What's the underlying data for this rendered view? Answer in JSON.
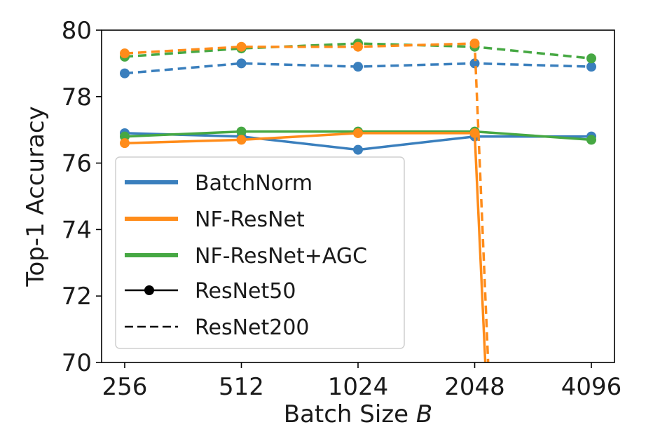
{
  "chart_data": {
    "type": "line",
    "title": "",
    "xlabel": "Batch Size",
    "xlabel_var": "B",
    "ylabel": "Top-1 Accuracy",
    "categories": [
      "256",
      "512",
      "1024",
      "2048",
      "4096"
    ],
    "ylim": [
      70,
      80
    ],
    "yticks": [
      "70",
      "72",
      "74",
      "76",
      "78",
      "80"
    ],
    "grid": false,
    "legend_position": "lower-left",
    "colors": {
      "BatchNorm": "#3a7fbd",
      "NF-ResNet": "#ff8c1a",
      "NF-ResNet+AGC": "#46a843",
      "marker_key": "#000000"
    },
    "legend": {
      "methods": [
        "BatchNorm",
        "NF-ResNet",
        "NF-ResNet+AGC"
      ],
      "models": [
        {
          "label": "ResNet50",
          "style": "solid"
        },
        {
          "label": "ResNet200",
          "style": "dashed"
        }
      ]
    },
    "series": [
      {
        "name": "BatchNorm ResNet50",
        "method": "BatchNorm",
        "model": "ResNet50",
        "style": "solid",
        "values": [
          76.9,
          76.8,
          76.4,
          76.8,
          76.8
        ]
      },
      {
        "name": "BatchNorm ResNet200",
        "method": "BatchNorm",
        "model": "ResNet200",
        "style": "dashed",
        "values": [
          78.7,
          79.0,
          78.9,
          79.0,
          78.9
        ]
      },
      {
        "name": "NF-ResNet ResNet50",
        "method": "NF-ResNet",
        "model": "ResNet50",
        "style": "solid",
        "values": [
          76.6,
          76.7,
          76.9,
          76.9,
          null
        ],
        "diverged_after": "2048",
        "diverged_to": 69.6
      },
      {
        "name": "NF-ResNet ResNet200",
        "method": "NF-ResNet",
        "model": "ResNet200",
        "style": "dashed",
        "values": [
          79.3,
          79.5,
          79.5,
          79.6,
          null
        ],
        "diverged_after": "2048",
        "diverged_to": 69.6
      },
      {
        "name": "NF-ResNet+AGC ResNet50",
        "method": "NF-ResNet+AGC",
        "model": "ResNet50",
        "style": "solid",
        "values": [
          76.8,
          76.95,
          76.95,
          76.95,
          76.7
        ]
      },
      {
        "name": "NF-ResNet+AGC ResNet200",
        "method": "NF-ResNet+AGC",
        "model": "ResNet200",
        "style": "dashed",
        "values": [
          79.2,
          79.45,
          79.6,
          79.5,
          79.15
        ]
      }
    ]
  }
}
